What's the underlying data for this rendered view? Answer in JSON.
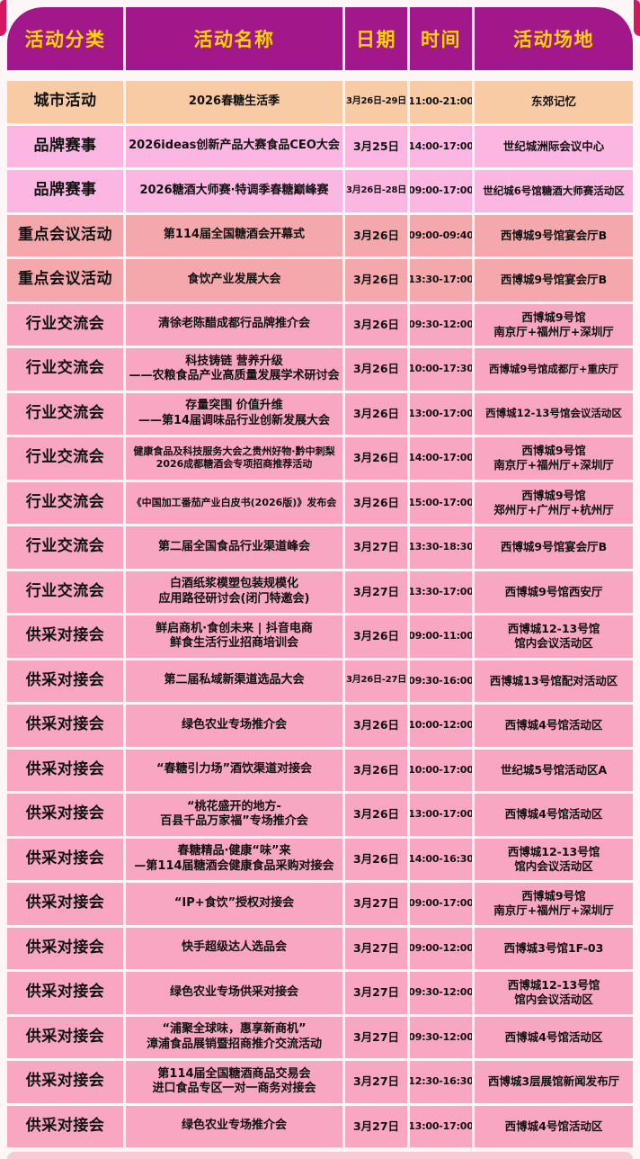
{
  "colors": {
    "page_bg": "#FDF6F7",
    "header_bg": "#A2188A",
    "header_text": "#FFD400",
    "decor_red": "#D4175E",
    "row_peach": "#F8CBA5",
    "row_orchid": "#FBB7E1",
    "row_salmon": "#F5A8AB",
    "row_rose": "#F8A6C2",
    "footer_pink": "#F9CBD6"
  },
  "header": {
    "columns": [
      "活动分类",
      "活动名称",
      "日期",
      "时间",
      "活动场地"
    ]
  },
  "table": {
    "rows": [
      {
        "category": "城市活动",
        "name": "2026春糖生活季",
        "date": "3月26日-29日",
        "time": "11:00-21:00",
        "venue": "东郊记忆",
        "theme": "peach"
      },
      {
        "category": "品牌赛事",
        "name": "2026ideas创新产品大赛食品CEO大会",
        "date": "3月25日",
        "time": "14:00-17:00",
        "venue": "世纪城洲际会议中心",
        "theme": "orchid"
      },
      {
        "category": "品牌赛事",
        "name": "2026糖酒大师赛·特调季春糖巅峰赛",
        "date": "3月26日-28日",
        "time": "09:00-17:00",
        "venue": "世纪城6号馆糖酒大师赛活动区",
        "theme": "orchid"
      },
      {
        "category": "重点会议活动",
        "name": "第114届全国糖酒会开幕式",
        "date": "3月26日",
        "time": "09:00-09:40",
        "venue": "西博城9号馆宴会厅B",
        "theme": "salmon"
      },
      {
        "category": "重点会议活动",
        "name": "食饮产业发展大会",
        "date": "3月26日",
        "time": "13:30-17:00",
        "venue": "西博城9号馆宴会厅B",
        "theme": "salmon"
      },
      {
        "category": "行业交流会",
        "name": "清徐老陈醋成都行品牌推介会",
        "date": "3月26日",
        "time": "09:30-12:00",
        "venue": "西博城9号馆\n南京厅+福州厅+深圳厅",
        "theme": "rose"
      },
      {
        "category": "行业交流会",
        "name": "科技铸链 营养升级\n——农粮食品产业高质量发展学术研讨会",
        "date": "3月26日",
        "time": "10:00-17:30",
        "venue": "西博城9号馆成都厅+重庆厅",
        "theme": "rose"
      },
      {
        "category": "行业交流会",
        "name": "存量突围 价值升维\n——第14届调味品行业创新发展大会",
        "date": "3月26日",
        "time": "13:00-17:00",
        "venue": "西博城12-13号馆会议活动区",
        "theme": "rose"
      },
      {
        "category": "行业交流会",
        "name": "健康食品及科技服务大会之贵州好物·黔中刺梨\n2026成都糖酒会专项招商推荐活动",
        "date": "3月26日",
        "time": "14:00-17:00",
        "venue": "西博城9号馆\n南京厅+福州厅+深圳厅",
        "theme": "rose"
      },
      {
        "category": "行业交流会",
        "name": "《中国加工番茄产业白皮书(2026版)》发布会",
        "date": "3月26日",
        "time": "15:00-17:00",
        "venue": "西博城9号馆\n郑州厅+广州厅+杭州厅",
        "theme": "rose"
      },
      {
        "category": "行业交流会",
        "name": "第二届全国食品行业渠道峰会",
        "date": "3月27日",
        "time": "13:30-18:30",
        "venue": "西博城9号馆宴会厅B",
        "theme": "rose"
      },
      {
        "category": "行业交流会",
        "name": "白酒纸浆模塑包装规模化\n应用路径研讨会(闭门特邀会)",
        "date": "3月27日",
        "time": "13:30-17:00",
        "venue": "西博城9号馆西安厅",
        "theme": "rose"
      },
      {
        "category": "供采对接会",
        "name": "鲜启商机·食创未来 | 抖音电商\n鲜食生活行业招商培训会",
        "date": "3月26日",
        "time": "09:00-11:00",
        "venue": "西博城12-13号馆\n馆内会议活动区",
        "theme": "rose"
      },
      {
        "category": "供采对接会",
        "name": "第二届私域新渠道选品大会",
        "date": "3月26日-27日",
        "time": "09:30-16:00",
        "venue": "西博城13号馆配对活动区",
        "theme": "rose"
      },
      {
        "category": "供采对接会",
        "name": "绿色农业专场推介会",
        "date": "3月26日",
        "time": "10:00-12:00",
        "venue": "西博城4号馆活动区",
        "theme": "rose"
      },
      {
        "category": "供采对接会",
        "name": "“春糖引力场”酒饮渠道对接会",
        "date": "3月26日",
        "time": "10:00-17:00",
        "venue": "世纪城5号馆活动区A",
        "theme": "rose"
      },
      {
        "category": "供采对接会",
        "name": "“桃花盛开的地方-\n百县千品万家福”专场推介会",
        "date": "3月26日",
        "time": "13:00-17:00",
        "venue": "西博城4号馆活动区",
        "theme": "rose"
      },
      {
        "category": "供采对接会",
        "name": "春糖精品·健康“味”来\n—第114届糖酒会健康食品采购对接会",
        "date": "3月26日",
        "time": "14:00-16:30",
        "venue": "西博城12-13号馆\n馆内会议活动区",
        "theme": "rose"
      },
      {
        "category": "供采对接会",
        "name": "“IP+食饮”授权对接会",
        "date": "3月27日",
        "time": "09:00-17:00",
        "venue": "西博城9号馆\n南京厅+福州厅+深圳厅",
        "theme": "rose"
      },
      {
        "category": "供采对接会",
        "name": "快手超级达人选品会",
        "date": "3月27日",
        "time": "09:00-12:00",
        "venue": "西博城3号馆1F-03",
        "theme": "rose"
      },
      {
        "category": "供采对接会",
        "name": "绿色农业专场供采对接会",
        "date": "3月27日",
        "time": "09:30-12:00",
        "venue": "西博城12-13号馆\n馆内会议活动区",
        "theme": "rose"
      },
      {
        "category": "供采对接会",
        "name": "“浦聚全球味，惠享新商机”\n漳浦食品展销暨招商推介交流活动",
        "date": "3月27日",
        "time": "09:30-12:00",
        "venue": "西博城4号馆活动区",
        "theme": "rose"
      },
      {
        "category": "供采对接会",
        "name": "第114届全国糖酒商品交易会\n进口食品专区一对一商务对接会",
        "date": "3月27日",
        "time": "12:30-16:30",
        "venue": "西博城3层展馆新闻发布厅",
        "theme": "rose"
      },
      {
        "category": "供采对接会",
        "name": "绿色农业专场推介会",
        "date": "3月27日",
        "time": "13:00-17:00",
        "venue": "西博城4号馆活动区",
        "theme": "rose"
      }
    ]
  }
}
